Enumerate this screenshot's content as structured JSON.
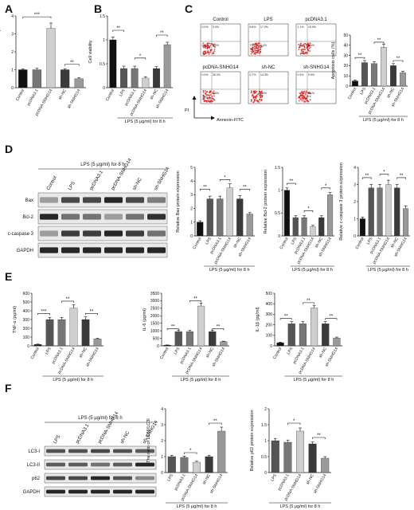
{
  "panels": [
    "A",
    "B",
    "C",
    "D",
    "E",
    "F"
  ],
  "groups_6": [
    "Control",
    "LPS",
    "pcDNA3.1",
    "pcDNA-SNHG14",
    "sh-NC",
    "sh-SNHG14"
  ],
  "groups_5": [
    "LPS",
    "pcDNA3.1",
    "pcDNA-SNHG14",
    "sh-NC",
    "sh-SNHG14"
  ],
  "treatment_note": "LPS (5 μg/ml) for 8 h",
  "panel_a_xlabels": [
    "Control",
    "pcDNA3.1",
    "pcDNA-SNHG14",
    "sh-NC",
    "sh-SNHG14"
  ],
  "facs": {
    "titles": [
      "Control",
      "LPS",
      "pcDNA3.1",
      "pcDNA-SNHG14",
      "sh-NC",
      "sh-SNHG14"
    ],
    "quadrants": [
      [
        "0.0%",
        "0.0%",
        "0.0%",
        "2.0%"
      ],
      [
        "6.8%",
        "17.0%",
        "73.8%",
        "2.4%"
      ],
      [
        "1.1%",
        "15.0%",
        "",
        "2.4%"
      ],
      [
        "0.0%",
        "30.2%",
        "",
        "5.4%"
      ],
      [
        "0.7%",
        "14.3%",
        "",
        "1.0%"
      ],
      [
        "0.3%",
        "9.9%",
        "",
        "2.1%"
      ]
    ],
    "y_axis": "PI",
    "x_axis": "Annexin-FITC"
  },
  "wb_d": {
    "lanes": [
      "Control",
      "LPS",
      "pcDNA3.1",
      "pcDNA-SNHG14",
      "sh-NC",
      "sh-SNHG14"
    ],
    "rows": [
      "Bax",
      "Bcl-2",
      "c-caspase 3",
      "GAPDH"
    ],
    "header": "LPS (5 μg/ml) for 8 h"
  },
  "wb_f": {
    "lanes": [
      "LPS",
      "pcDNA3.1",
      "pcDNA-SNHG14",
      "sh-NC",
      "sh-SNHG14"
    ],
    "rows": [
      "LC3-I",
      "LC3-II",
      "p62",
      "GAPDH"
    ],
    "header": "LPS (5 μg/ml) for 8 h"
  },
  "colors": {
    "Control": "#111111",
    "LPS": "#555555",
    "pcDNA3.1": "#777777",
    "pcDNA-SNHG14": "#cfcfcf",
    "sh-NC": "#3a3a3a",
    "sh-SNHG14": "#999999"
  },
  "chart_data": [
    {
      "id": "A",
      "type": "bar",
      "categories": [
        "Control",
        "pcDNA3.1",
        "pcDNA-SNHG14",
        "sh-NC",
        "sh-SNHG14"
      ],
      "values": [
        1.0,
        1.0,
        3.3,
        1.0,
        0.5
      ],
      "errors": [
        0.05,
        0.08,
        0.3,
        0.06,
        0.05
      ],
      "ylabel": "Relative LncRNA SNHG14 expression",
      "ylim": [
        0,
        4
      ],
      "yticks": [
        0,
        1,
        2,
        3,
        4
      ],
      "sig": [
        {
          "from": 0,
          "to": 2,
          "label": "***",
          "y": 3.95
        },
        {
          "from": 3,
          "to": 4,
          "label": "**",
          "y": 1.3
        }
      ]
    },
    {
      "id": "B",
      "type": "bar",
      "categories": [
        "Control",
        "LPS",
        "pcDNA3.1",
        "pcDNA-SNHG14",
        "sh-NC",
        "sh-SNHG14"
      ],
      "values": [
        1.0,
        0.4,
        0.4,
        0.2,
        0.4,
        0.9
      ],
      "errors": [
        0.06,
        0.05,
        0.05,
        0.03,
        0.04,
        0.05
      ],
      "ylabel": "Cell viability",
      "ylim": [
        0,
        1.5
      ],
      "yticks": [
        0,
        0.5,
        1.0,
        1.5
      ],
      "xnote": "LPS (5 μg/ml) for 8 h",
      "sig": [
        {
          "from": 0,
          "to": 1,
          "label": "**",
          "y": 1.2
        },
        {
          "from": 2,
          "to": 3,
          "label": "*",
          "y": 0.62
        },
        {
          "from": 4,
          "to": 5,
          "label": "**",
          "y": 1.1
        }
      ]
    },
    {
      "id": "C",
      "type": "bar",
      "categories": [
        "Control",
        "LPS",
        "pcDNA3.1",
        "pcDNA-SNHG14",
        "sh-NC",
        "sh-SNHG14"
      ],
      "values": [
        5,
        23,
        22,
        38,
        20,
        13
      ],
      "errors": [
        1,
        2,
        2,
        3,
        2,
        1.5
      ],
      "ylabel": "Apoptosis cells (%)",
      "ylim": [
        0,
        50
      ],
      "yticks": [
        0,
        10,
        20,
        30,
        40,
        50
      ],
      "xnote": "LPS (5 μg/ml) for 8 h",
      "sig": [
        {
          "from": 0,
          "to": 1,
          "label": "**",
          "y": 28
        },
        {
          "from": 2,
          "to": 3,
          "label": "**",
          "y": 43
        },
        {
          "from": 4,
          "to": 5,
          "label": "**",
          "y": 25
        }
      ]
    },
    {
      "id": "D1",
      "type": "bar",
      "categories": [
        "Control",
        "LPS",
        "pcDNA3.1",
        "pcDNA-SNHG14",
        "sh-NC",
        "sh-SNHG14"
      ],
      "values": [
        1.0,
        2.7,
        2.7,
        3.5,
        2.7,
        1.6
      ],
      "errors": [
        0.1,
        0.2,
        0.2,
        0.3,
        0.25,
        0.1
      ],
      "ylabel": "Relative Bax protein expression",
      "ylim": [
        0,
        5
      ],
      "yticks": [
        0,
        1,
        2,
        3,
        4,
        5
      ],
      "xnote": "LPS (5 μg/ml) for 8 h",
      "sig": [
        {
          "from": 0,
          "to": 1,
          "label": "**",
          "y": 3.4
        },
        {
          "from": 2,
          "to": 3,
          "label": "*",
          "y": 4.1
        },
        {
          "from": 4,
          "to": 5,
          "label": "**",
          "y": 3.4
        }
      ]
    },
    {
      "id": "D2",
      "type": "bar",
      "categories": [
        "Control",
        "LPS",
        "pcDNA3.1",
        "pcDNA-SNHG14",
        "sh-NC",
        "sh-SNHG14"
      ],
      "values": [
        1.0,
        0.4,
        0.4,
        0.2,
        0.4,
        0.9
      ],
      "errors": [
        0.05,
        0.04,
        0.04,
        0.03,
        0.04,
        0.05
      ],
      "ylabel": "Relative Bcl-2 protein expression",
      "ylim": [
        0,
        1.5
      ],
      "yticks": [
        0,
        0.5,
        1.0,
        1.5
      ],
      "xnote": "LPS (5 μg/ml) for 8 h",
      "sig": [
        {
          "from": 0,
          "to": 1,
          "label": "**",
          "y": 1.15
        },
        {
          "from": 2,
          "to": 3,
          "label": "*",
          "y": 0.55
        },
        {
          "from": 4,
          "to": 5,
          "label": "*",
          "y": 1.05
        }
      ]
    },
    {
      "id": "D3",
      "type": "bar",
      "categories": [
        "Control",
        "LPS",
        "pcDNA3.1",
        "pcDNA-SNHG14",
        "sh-NC",
        "sh-SNHG14"
      ],
      "values": [
        1.0,
        2.8,
        2.8,
        3.0,
        2.8,
        1.6
      ],
      "errors": [
        0.1,
        0.2,
        0.2,
        0.25,
        0.2,
        0.15
      ],
      "ylabel": "Relative c-caspase 3 protein expression",
      "ylim": [
        0,
        4
      ],
      "yticks": [
        0,
        1,
        2,
        3,
        4
      ],
      "xnote": "LPS (5 μg/ml) for 8 h",
      "sig": [
        {
          "from": 0,
          "to": 1,
          "label": "**",
          "y": 3.4
        },
        {
          "from": 2,
          "to": 3,
          "label": "*",
          "y": 3.6
        },
        {
          "from": 4,
          "to": 5,
          "label": "**",
          "y": 3.4
        }
      ]
    },
    {
      "id": "E1",
      "type": "bar",
      "categories": [
        "Control",
        "LPS",
        "pcDNA3.1",
        "pcDNA-SNHG14",
        "sh-NC",
        "sh-SNHG14"
      ],
      "values": [
        15,
        300,
        300,
        430,
        300,
        80
      ],
      "errors": [
        5,
        25,
        25,
        40,
        30,
        8
      ],
      "ylabel": "TNF-α (pg/ml)",
      "ylim": [
        0,
        600
      ],
      "yticks": [
        0,
        100,
        200,
        300,
        400,
        500,
        600
      ],
      "xnote": "LPS (5 μg/ml) for 8 h",
      "sig": [
        {
          "from": 0,
          "to": 1,
          "label": "***",
          "y": 370
        },
        {
          "from": 2,
          "to": 3,
          "label": "**",
          "y": 510
        },
        {
          "from": 4,
          "to": 5,
          "label": "**",
          "y": 370
        }
      ]
    },
    {
      "id": "E2",
      "type": "bar",
      "categories": [
        "Control",
        "LPS",
        "pcDNA3.1",
        "pcDNA-SNHG14",
        "sh-NC",
        "sh-SNHG14"
      ],
      "values": [
        50,
        950,
        950,
        2650,
        950,
        280
      ],
      "errors": [
        10,
        80,
        80,
        200,
        90,
        30
      ],
      "ylabel": "IL-6 (pg/ml)",
      "ylim": [
        0,
        3500
      ],
      "yticks": [
        0,
        500,
        1000,
        1500,
        2000,
        2500,
        3000,
        3500
      ],
      "xnote": "LPS (5 μg/ml) for 8 h",
      "sig": [
        {
          "from": 0,
          "to": 1,
          "label": "**",
          "y": 1150
        },
        {
          "from": 2,
          "to": 3,
          "label": "**",
          "y": 3000
        },
        {
          "from": 4,
          "to": 5,
          "label": "**",
          "y": 1150
        }
      ]
    },
    {
      "id": "E3",
      "type": "bar",
      "categories": [
        "Control",
        "LPS",
        "pcDNA3.1",
        "pcDNA-SNHG14",
        "sh-NC",
        "sh-SNHG14"
      ],
      "values": [
        30,
        210,
        210,
        360,
        210,
        75
      ],
      "errors": [
        5,
        20,
        20,
        25,
        20,
        8
      ],
      "ylabel": "IL-1β (pg/ml)",
      "ylim": [
        0,
        500
      ],
      "yticks": [
        0,
        100,
        200,
        300,
        400,
        500
      ],
      "xnote": "LPS (5 μg/ml) for 8 h",
      "sig": [
        {
          "from": 0,
          "to": 1,
          "label": "**",
          "y": 260
        },
        {
          "from": 2,
          "to": 3,
          "label": "**",
          "y": 410
        },
        {
          "from": 4,
          "to": 5,
          "label": "**",
          "y": 260
        }
      ]
    },
    {
      "id": "F1",
      "type": "bar",
      "categories": [
        "LPS",
        "pcDNA3.1",
        "pcDNA-SNHG14",
        "sh-NC",
        "sh-SNHG14"
      ],
      "values": [
        1.0,
        0.95,
        0.65,
        1.0,
        2.6
      ],
      "errors": [
        0.08,
        0.08,
        0.06,
        0.08,
        0.25
      ],
      "ylabel": "The ratio of LC3II/LC3I",
      "ylim": [
        0,
        4
      ],
      "yticks": [
        0,
        1,
        2,
        3,
        4
      ],
      "xnote": "LPS (5 μg/ml) for 8 h",
      "sig": [
        {
          "from": 1,
          "to": 2,
          "label": "*",
          "y": 1.25
        },
        {
          "from": 3,
          "to": 4,
          "label": "**",
          "y": 3.1
        }
      ]
    },
    {
      "id": "F2",
      "type": "bar",
      "categories": [
        "LPS",
        "pcDNA3.1",
        "pcDNA-SNHG14",
        "sh-NC",
        "sh-SNHG14"
      ],
      "values": [
        1.0,
        0.95,
        1.3,
        0.9,
        0.45
      ],
      "errors": [
        0.07,
        0.07,
        0.1,
        0.06,
        0.05
      ],
      "ylabel": "Relative p62 protein expression",
      "ylim": [
        0,
        2.0
      ],
      "yticks": [
        0,
        0.5,
        1.0,
        1.5,
        2.0
      ],
      "xnote": "LPS (5 μg/ml) for 8 h",
      "sig": [
        {
          "from": 1,
          "to": 2,
          "label": "*",
          "y": 1.55
        },
        {
          "from": 3,
          "to": 4,
          "label": "**",
          "y": 1.1
        }
      ]
    }
  ]
}
